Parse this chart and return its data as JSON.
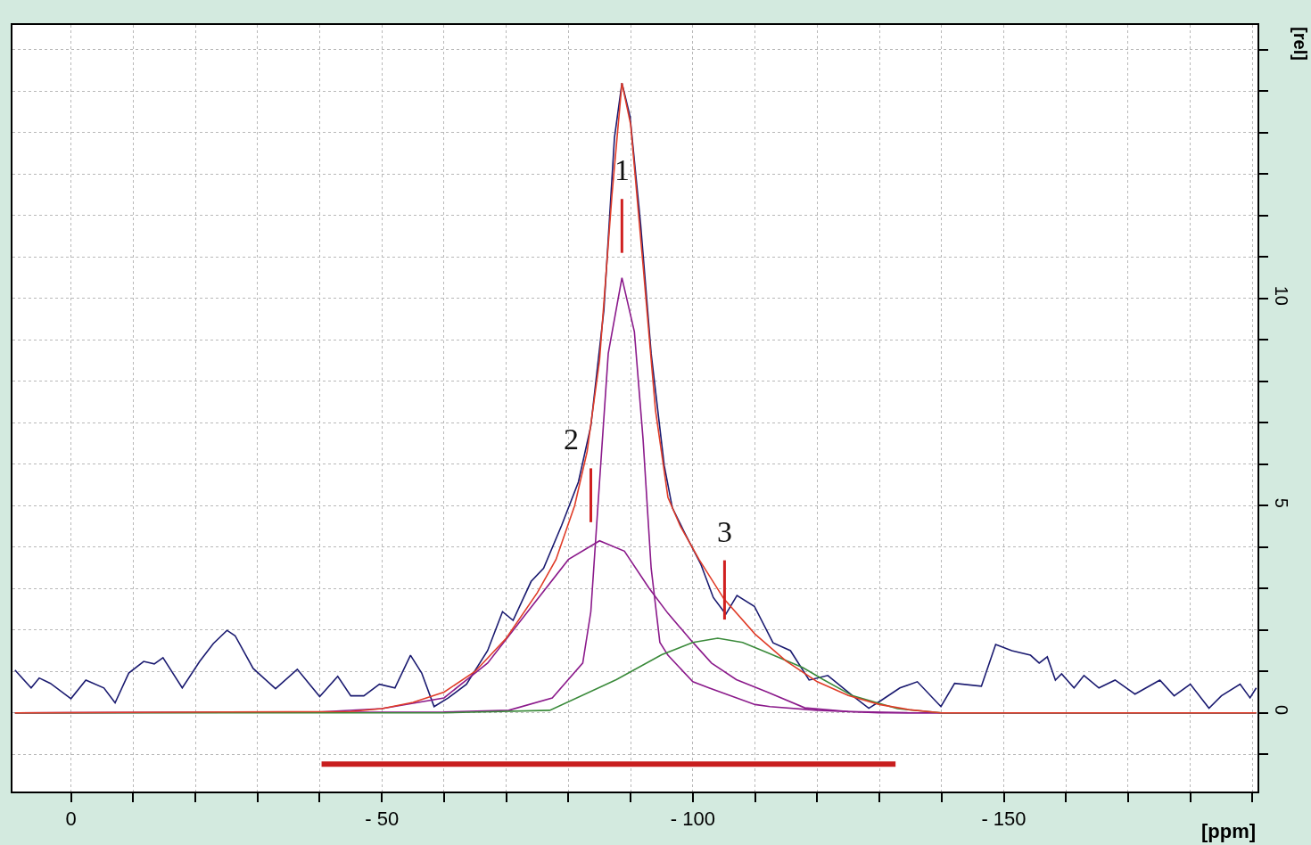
{
  "chart_data": {
    "type": "line",
    "xlabel": "[ppm]",
    "ylabel": "[rel]",
    "xlim": [
      9.4,
      -190.8
    ],
    "ylim": [
      -1.9,
      16.6
    ],
    "xticks": [
      {
        "value": 0,
        "label": "0"
      },
      {
        "value": -10,
        "label": null
      },
      {
        "value": -20,
        "label": null
      },
      {
        "value": -30,
        "label": null
      },
      {
        "value": -40,
        "label": null
      },
      {
        "value": -50,
        "label": "- 50"
      },
      {
        "value": -60,
        "label": null
      },
      {
        "value": -70,
        "label": null
      },
      {
        "value": -80,
        "label": null
      },
      {
        "value": -90,
        "label": null
      },
      {
        "value": -100,
        "label": "- 100"
      },
      {
        "value": -110,
        "label": null
      },
      {
        "value": -120,
        "label": null
      },
      {
        "value": -130,
        "label": null
      },
      {
        "value": -140,
        "label": null
      },
      {
        "value": -150,
        "label": "- 150"
      },
      {
        "value": -160,
        "label": null
      },
      {
        "value": -170,
        "label": null
      },
      {
        "value": -180,
        "label": null
      },
      {
        "value": -190,
        "label": null
      }
    ],
    "yticks": [
      {
        "value": -1,
        "label": null
      },
      0,
      {
        "value": 1,
        "label": null
      },
      {
        "value": 2,
        "label": null
      },
      {
        "value": 3,
        "label": null
      },
      {
        "value": 4,
        "label": null
      },
      5,
      {
        "value": 6,
        "label": null
      },
      {
        "value": 7,
        "label": null
      },
      {
        "value": 8,
        "label": null
      },
      {
        "value": 9,
        "label": null
      },
      10,
      {
        "value": 11,
        "label": null
      },
      {
        "value": 12,
        "label": null
      },
      {
        "value": 13,
        "label": null
      },
      {
        "value": 14,
        "label": null
      },
      {
        "value": 15,
        "label": null
      },
      {
        "value": 16,
        "label": null
      }
    ],
    "grid": true,
    "series": [
      {
        "color": "#1a1a70",
        "x": [
          9.0,
          6.4,
          5.1,
          3.3,
          0,
          -2.4,
          -5.3,
          -7.1,
          -9.3,
          -11.7,
          -13.4,
          -14.8,
          -17.9,
          -20.7,
          -22.9,
          -25.1,
          -26.4,
          -29.3,
          -32.9,
          -36.4,
          -40,
          -42.9,
          -45,
          -47.1,
          -49.6,
          -52.1,
          -54.6,
          -56.4,
          -58.4,
          -60.7,
          -63.6,
          -67,
          -69.4,
          -71.1,
          -74,
          -76,
          -78.9,
          -81.6,
          -83.6,
          -85.7,
          -87.4,
          -88.6,
          -89.9,
          -91.6,
          -93.3,
          -95.4,
          -96.7,
          -98.6,
          -101.3,
          -103.3,
          -105.3,
          -107.1,
          -109.9,
          -112.9,
          -115.7,
          -118.7,
          -121.7,
          -125.7,
          -128.3,
          -130.3,
          -133.3,
          -136.1,
          -139.9,
          -142.1,
          -146.4,
          -148.7,
          -151.3,
          -154.3,
          -155.7,
          -157,
          -158.3,
          -159.3,
          -161.3,
          -162.9,
          -165.3,
          -167.9,
          -171.1,
          -175.1,
          -177.4,
          -180,
          -183,
          -185,
          -188,
          -189.6,
          -190.6
        ],
        "values": [
          1.03,
          0.6,
          0.84,
          0.71,
          0.34,
          0.79,
          0.6,
          0.24,
          0.96,
          1.24,
          1.18,
          1.33,
          0.6,
          1.24,
          1.67,
          1.99,
          1.86,
          1.07,
          0.58,
          1.05,
          0.39,
          0.88,
          0.41,
          0.41,
          0.69,
          0.6,
          1.39,
          0.96,
          0.15,
          0.36,
          0.69,
          1.5,
          2.44,
          2.23,
          3.17,
          3.49,
          4.52,
          5.57,
          6.92,
          9.72,
          13.88,
          15.2,
          14.4,
          11.8,
          8.67,
          5.97,
          4.95,
          4.37,
          3.58,
          2.78,
          2.38,
          2.83,
          2.57,
          1.69,
          1.5,
          0.79,
          0.9,
          0.41,
          0.11,
          0.3,
          0.6,
          0.75,
          0.15,
          0.71,
          0.64,
          1.65,
          1.5,
          1.39,
          1.2,
          1.35,
          0.79,
          0.94,
          0.6,
          0.9,
          0.6,
          0.79,
          0.45,
          0.79,
          0.41,
          0.69,
          0.11,
          0.41,
          0.69,
          0.36,
          0.6
        ]
      },
      {
        "color": "#8b1a8b",
        "x": [
          9.0,
          -60,
          -70.4,
          -77.4,
          -82.3,
          -83.6,
          -85,
          -86.4,
          -88.6,
          -90.6,
          -92,
          -93.3,
          -94.7,
          -96,
          -100,
          -102.6,
          -110,
          -112.4,
          -120,
          -130,
          -190.6
        ],
        "values": [
          0,
          0.02,
          0.06,
          0.36,
          1.2,
          2.44,
          5.57,
          8.67,
          10.5,
          9.2,
          6.6,
          3.49,
          1.7,
          1.39,
          0.75,
          0.6,
          0.2,
          0.15,
          0.06,
          0,
          0
        ]
      },
      {
        "color": "#8b1a8b",
        "x": [
          9.0,
          -40,
          -50,
          -60,
          -67,
          -74,
          -80,
          -85,
          -89,
          -93,
          -96,
          -100,
          -103,
          -107,
          -112,
          -118,
          -125,
          -135,
          -190.6
        ],
        "values": [
          0,
          0.02,
          0.1,
          0.36,
          1.2,
          2.55,
          3.7,
          4.15,
          3.9,
          3.0,
          2.4,
          1.7,
          1.2,
          0.8,
          0.5,
          0.12,
          0.03,
          0,
          0
        ]
      },
      {
        "color": "#3a8a3a",
        "x": [
          9.0,
          -60,
          -77,
          -87.7,
          -95,
          -100,
          -104,
          -108,
          -112,
          -117.7,
          -121,
          -125.7,
          -132.9,
          -140,
          -190.6
        ],
        "values": [
          0,
          0,
          0.06,
          0.8,
          1.4,
          1.7,
          1.8,
          1.7,
          1.45,
          1.09,
          0.8,
          0.41,
          0.1,
          0,
          0
        ]
      },
      {
        "color": "#e03c28",
        "x": [
          9.0,
          -45,
          -50,
          -55,
          -60,
          -65,
          -70,
          -75,
          -78,
          -81,
          -83,
          -85,
          -87,
          -88.6,
          -90,
          -92,
          -94,
          -96,
          -98,
          -101,
          -105,
          -110,
          -115,
          -120,
          -125,
          -130,
          -135,
          -140,
          -190.6
        ],
        "values": [
          0,
          0.03,
          0.1,
          0.25,
          0.5,
          1.0,
          1.8,
          2.9,
          3.7,
          5.0,
          6.3,
          8.5,
          12.5,
          15.2,
          14.2,
          10.8,
          7.3,
          5.2,
          4.5,
          3.7,
          2.75,
          1.9,
          1.25,
          0.75,
          0.42,
          0.2,
          0.07,
          0,
          0
        ]
      },
      {
        "color": "#d02020",
        "x": [
          -88.6,
          -88.6
        ],
        "values": [
          11.1,
          12.4
        ]
      },
      {
        "color": "#d02020",
        "x": [
          -83.6,
          -83.6
        ],
        "values": [
          4.6,
          5.9
        ]
      },
      {
        "color": "#d02020",
        "x": [
          -105.1,
          -105.1
        ],
        "values": [
          2.25,
          3.68
        ]
      },
      {
        "color": "#c81e1e",
        "x": [
          -40.3,
          -132.6
        ],
        "values": [
          -1.24,
          -1.24
        ]
      }
    ],
    "annotations": [
      "1",
      "2",
      "3"
    ]
  }
}
